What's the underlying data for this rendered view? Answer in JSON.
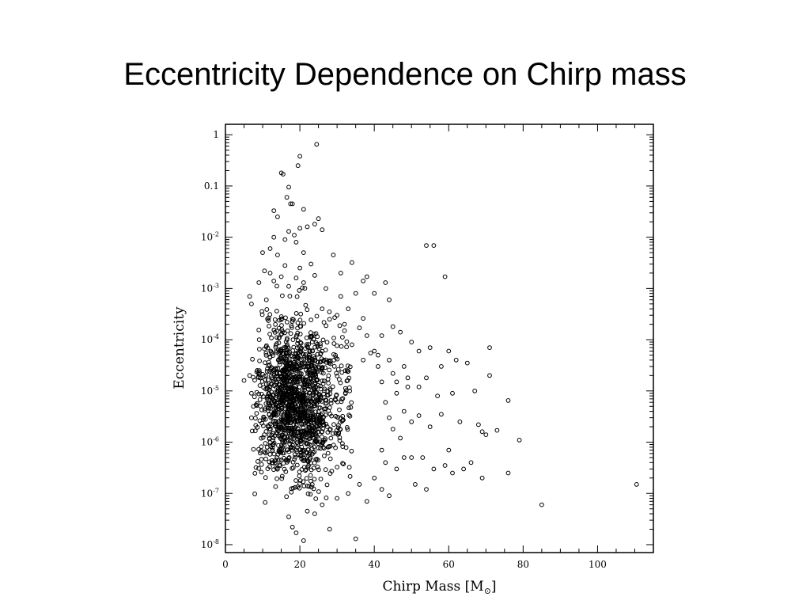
{
  "slide": {
    "title": "Eccentricity Dependence on Chirp mass"
  },
  "chart_data": {
    "type": "scatter",
    "title": "",
    "xlabel": "Chirp Mass [M",
    "xlabel_sub": "⊙",
    "xlabel_close": "]",
    "ylabel": "Eccentricity",
    "x_scale": "linear",
    "y_scale": "log",
    "xlim": [
      0,
      115
    ],
    "ylim": [
      7e-09,
      1.6
    ],
    "x_ticks": [
      0,
      20,
      40,
      60,
      80,
      100
    ],
    "y_ticks": [
      {
        "value": 1,
        "base": "1",
        "exp": ""
      },
      {
        "value": 0.1,
        "base": "0.1",
        "exp": ""
      },
      {
        "value": 0.01,
        "base": "10",
        "exp": "-2"
      },
      {
        "value": 0.001,
        "base": "10",
        "exp": "-3"
      },
      {
        "value": 0.0001,
        "base": "10",
        "exp": "-4"
      },
      {
        "value": 1e-05,
        "base": "10",
        "exp": "-5"
      },
      {
        "value": 1e-06,
        "base": "10",
        "exp": "-6"
      },
      {
        "value": 1e-07,
        "base": "10",
        "exp": "-7"
      },
      {
        "value": 1e-08,
        "base": "10",
        "exp": "-8"
      }
    ],
    "marker": "open-circle",
    "marker_color": "#000000",
    "grid": false,
    "legend": "none",
    "points": [
      [
        24.5,
        0.65
      ],
      [
        20.0,
        0.38
      ],
      [
        19.5,
        0.25
      ],
      [
        15.0,
        0.18
      ],
      [
        15.5,
        0.17
      ],
      [
        17.0,
        0.095
      ],
      [
        16.5,
        0.06
      ],
      [
        18.0,
        0.045
      ],
      [
        17.5,
        0.045
      ],
      [
        13.0,
        0.033
      ],
      [
        21.0,
        0.035
      ],
      [
        14.0,
        0.025
      ],
      [
        25.0,
        0.023
      ],
      [
        24.0,
        0.018
      ],
      [
        22.0,
        0.016
      ],
      [
        20.0,
        0.015
      ],
      [
        26.0,
        0.014
      ],
      [
        17.0,
        0.013
      ],
      [
        18.5,
        0.011
      ],
      [
        13.0,
        0.01
      ],
      [
        16.0,
        0.009
      ],
      [
        19.0,
        0.008
      ],
      [
        12.0,
        0.006
      ],
      [
        10.0,
        0.005
      ],
      [
        21.0,
        0.005
      ],
      [
        14.0,
        0.0045
      ],
      [
        29.0,
        0.0045
      ],
      [
        34.0,
        0.0032
      ],
      [
        23.0,
        0.003
      ],
      [
        16.0,
        0.0028
      ],
      [
        20.0,
        0.0025
      ],
      [
        10.5,
        0.0022
      ],
      [
        12.0,
        0.002
      ],
      [
        24.0,
        0.0018
      ],
      [
        31.0,
        0.002
      ],
      [
        15.0,
        0.0017
      ],
      [
        38.0,
        0.0017
      ],
      [
        59.0,
        0.0017
      ],
      [
        19.0,
        0.0016
      ],
      [
        13.0,
        0.0014
      ],
      [
        21.0,
        0.0013
      ],
      [
        37.0,
        0.0014
      ],
      [
        43.0,
        0.0013
      ],
      [
        9.0,
        0.0013
      ],
      [
        17.0,
        0.0011
      ],
      [
        27.0,
        0.001
      ],
      [
        6.5,
        0.0007
      ],
      [
        7.0,
        0.0005
      ],
      [
        11.0,
        0.0006
      ],
      [
        35.0,
        0.0008
      ],
      [
        31.0,
        0.0007
      ],
      [
        40.0,
        0.0008
      ],
      [
        44.0,
        0.0006
      ],
      [
        33.0,
        0.0004
      ],
      [
        26.0,
        0.0004
      ],
      [
        37.0,
        0.00026
      ],
      [
        28.0,
        0.00025
      ],
      [
        30.0,
        0.0003
      ],
      [
        45.0,
        0.00018
      ],
      [
        47.0,
        0.00014
      ],
      [
        54.0,
        0.0069
      ],
      [
        56.0,
        0.0069
      ],
      [
        32.0,
        0.0002
      ],
      [
        36.0,
        0.00017
      ],
      [
        42.0,
        0.00012
      ],
      [
        50.0,
        9e-05
      ],
      [
        52.0,
        6e-05
      ],
      [
        55.0,
        7e-05
      ],
      [
        60.0,
        6e-05
      ],
      [
        62.0,
        4e-05
      ],
      [
        58.0,
        3e-05
      ],
      [
        65.0,
        3.5e-05
      ],
      [
        71.0,
        7e-05
      ],
      [
        71.0,
        2e-05
      ],
      [
        67.0,
        1e-05
      ],
      [
        76.0,
        6.5e-06
      ],
      [
        49.0,
        1.8e-05
      ],
      [
        52.0,
        1.2e-05
      ],
      [
        46.0,
        1.5e-05
      ],
      [
        48.0,
        3e-05
      ],
      [
        44.0,
        4e-05
      ],
      [
        41.0,
        5e-05
      ],
      [
        39.0,
        5.5e-05
      ],
      [
        54.0,
        1.8e-05
      ],
      [
        57.0,
        8e-06
      ],
      [
        61.0,
        9e-06
      ],
      [
        63.0,
        2.5e-06
      ],
      [
        58.0,
        3.5e-06
      ],
      [
        69.0,
        1.6e-06
      ],
      [
        70.0,
        1.4e-06
      ],
      [
        73.0,
        1.7e-06
      ],
      [
        79.0,
        1.1e-06
      ],
      [
        68.0,
        2.2e-06
      ],
      [
        60.0,
        7e-07
      ],
      [
        55.0,
        2e-06
      ],
      [
        52.0,
        3.3e-06
      ],
      [
        50.0,
        5e-07
      ],
      [
        53.0,
        5e-07
      ],
      [
        56.0,
        3e-07
      ],
      [
        59.0,
        3.5e-07
      ],
      [
        61.0,
        2.5e-07
      ],
      [
        64.0,
        3e-07
      ],
      [
        66.0,
        4e-07
      ],
      [
        69.0,
        2e-07
      ],
      [
        76.0,
        2.5e-07
      ],
      [
        54.0,
        1.2e-07
      ],
      [
        51.0,
        1.5e-07
      ],
      [
        44.0,
        9e-08
      ],
      [
        42.0,
        1.2e-07
      ],
      [
        38.0,
        7e-08
      ],
      [
        85.0,
        6e-08
      ],
      [
        110.5,
        1.5e-07
      ],
      [
        35.0,
        1.3e-08
      ],
      [
        28.0,
        2e-08
      ],
      [
        21.0,
        1.2e-08
      ],
      [
        19.0,
        1.7e-08
      ],
      [
        18.0,
        2.2e-08
      ],
      [
        17.0,
        3.5e-08
      ],
      [
        22.0,
        4.5e-08
      ],
      [
        24.0,
        4e-08
      ],
      [
        26.0,
        6e-08
      ],
      [
        30.0,
        8e-08
      ],
      [
        33.0,
        1e-07
      ],
      [
        36.0,
        1.5e-07
      ],
      [
        40.0,
        2e-07
      ],
      [
        46.0,
        3e-07
      ],
      [
        43.0,
        4e-07
      ],
      [
        48.0,
        5e-07
      ],
      [
        42.0,
        7e-07
      ],
      [
        47.0,
        1.2e-06
      ],
      [
        45.0,
        1.8e-06
      ],
      [
        50.0,
        2.5e-06
      ],
      [
        44.0,
        3e-06
      ],
      [
        48.0,
        4e-06
      ],
      [
        43.0,
        6e-06
      ],
      [
        46.0,
        9e-06
      ],
      [
        49.0,
        1.2e-05
      ],
      [
        42.0,
        1.5e-05
      ],
      [
        45.0,
        2.2e-05
      ],
      [
        41.0,
        3e-05
      ],
      [
        37.0,
        4e-05
      ],
      [
        40.0,
        6e-05
      ],
      [
        34.0,
        8e-05
      ],
      [
        38.0,
        0.00012
      ],
      [
        32.0,
        0.00015
      ],
      [
        5.0,
        1.6e-05
      ],
      [
        6.5,
        2e-05
      ],
      [
        7.0,
        9e-06
      ],
      [
        7.5,
        5e-06
      ],
      [
        7.0,
        3e-06
      ]
    ],
    "dense_region": {
      "x_range": [
        7,
        34
      ],
      "x_peak": 18,
      "log_y_range": [
        -7.2,
        -2.6
      ],
      "log_y_center": -5.2,
      "count": 1500
    }
  }
}
